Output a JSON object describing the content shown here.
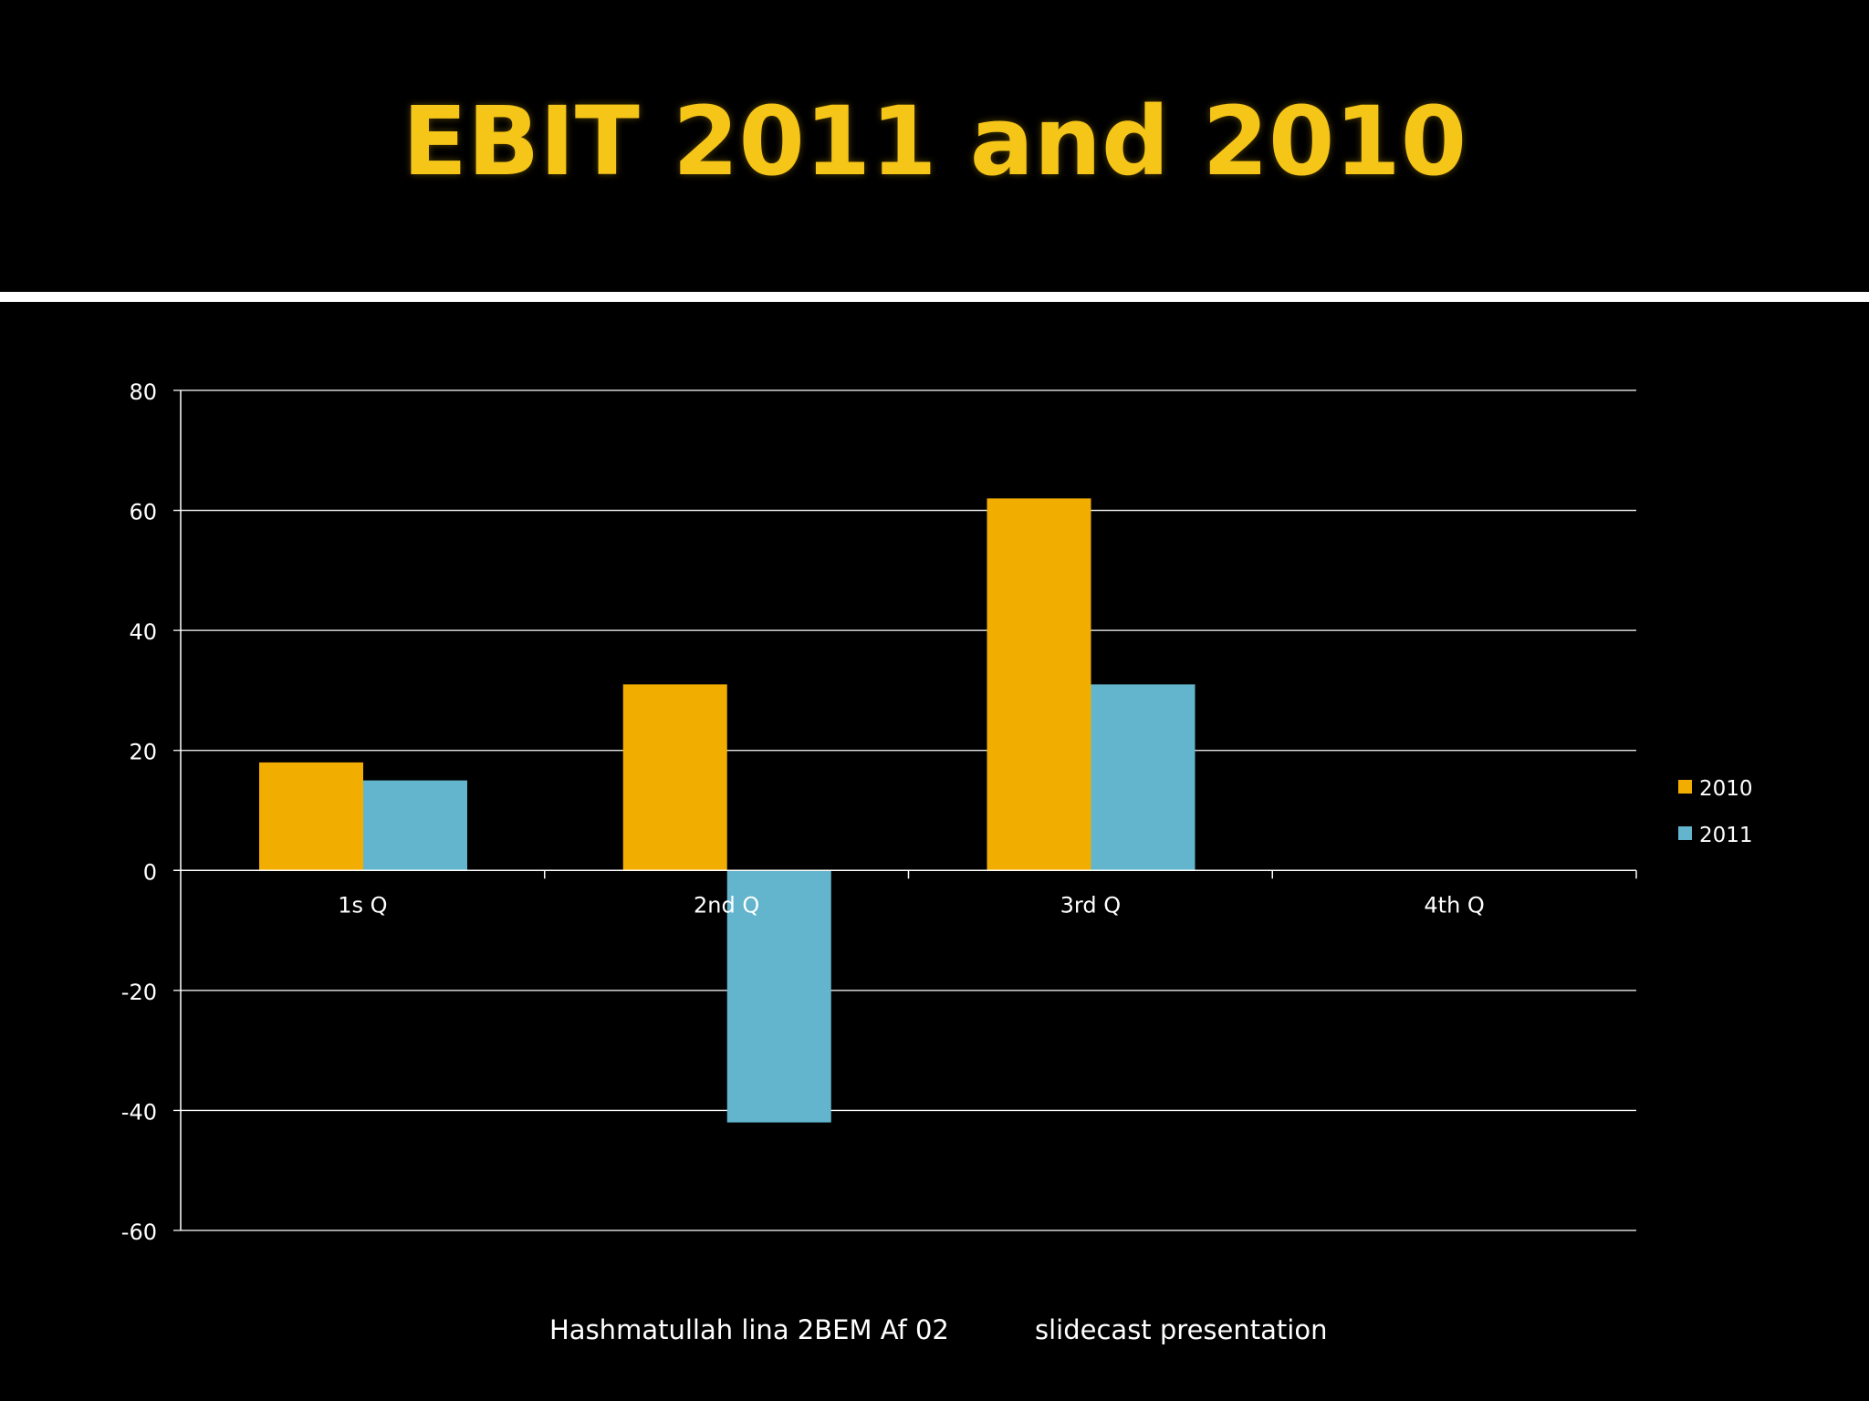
{
  "slide": {
    "title": "EBIT 2011 and 2010",
    "footer_author": "Hashmatullah lina 2BEM Af 02",
    "footer_type": "slidecast presentation"
  },
  "colors": {
    "background": "#000000",
    "title": "#f5c518",
    "series_2010": "#f2ae00",
    "series_2011": "#62b5cc",
    "grid": "#ffffff",
    "text": "#ffffff"
  },
  "chart_data": {
    "type": "bar",
    "title": "",
    "xlabel": "",
    "ylabel": "",
    "categories": [
      "1s Q",
      "2nd Q",
      "3rd Q",
      "4th Q"
    ],
    "series": [
      {
        "name": "2010",
        "values": [
          18,
          31,
          62,
          null
        ]
      },
      {
        "name": "2011",
        "values": [
          15,
          -42,
          31,
          null
        ]
      }
    ],
    "ylim": [
      -60,
      80
    ],
    "yticks": [
      80,
      60,
      40,
      20,
      0,
      -20,
      -40,
      -60
    ],
    "ytick_labels": [
      "80",
      "60",
      "40",
      "20",
      "0",
      "-20",
      "-40",
      "-60"
    ],
    "grid": true,
    "legend": "right"
  }
}
